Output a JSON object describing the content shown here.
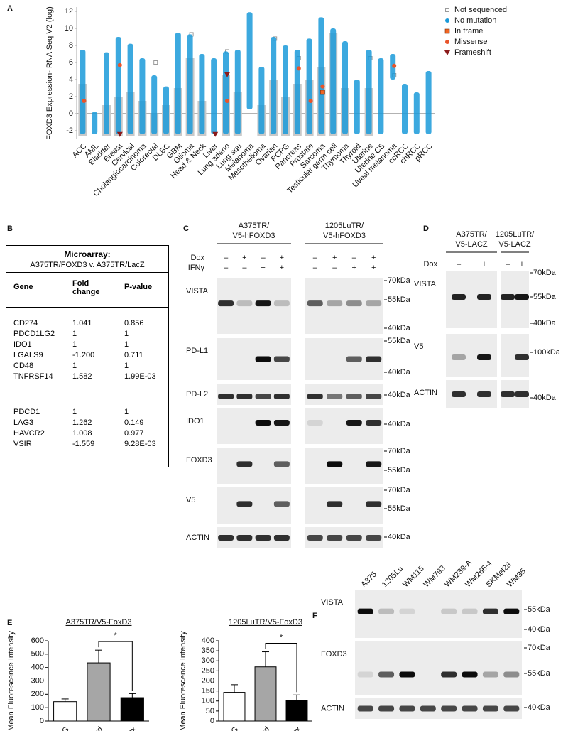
{
  "panel_labels": [
    "A",
    "B",
    "C",
    "D",
    "E",
    "F"
  ],
  "chart_data": [
    {
      "type": "strip",
      "y_label": "FOXD3 Expression- RNA Seq V2 (log)",
      "categories": [
        "ACC",
        "AML",
        "Bladder",
        "Breast",
        "Cervical",
        "Cholangiocarcinoma",
        "Colorectal",
        "DLBC",
        "GBM",
        "Glioma",
        "Head & Neck",
        "Liver",
        "Lung adeno",
        "Lung squ",
        "Melanoma",
        "Mesothelioma",
        "Ovarian",
        "PCPG",
        "Pancreas",
        "Prostate",
        "Sarcoma",
        "Testicular germ cell",
        "Thymoma",
        "Thyroid",
        "Uterine",
        "Uterine CS",
        "Uveal melanoma",
        "ccRCC",
        "chRCC",
        "pRCC"
      ],
      "box_values": [
        3.5,
        null,
        1,
        2,
        2.5,
        1.5,
        0,
        1,
        3,
        6.5,
        1.5,
        null,
        4.5,
        2.5,
        null,
        1,
        4,
        2,
        3.5,
        4,
        5.5,
        9.5,
        3,
        null,
        3,
        null,
        null,
        null,
        null,
        null
      ],
      "box_color": "#c9c9c9",
      "series": [
        {
          "name": "Not sequenced",
          "marker": "square-open",
          "color": "#9a9a9a",
          "values": [
            null,
            null,
            null,
            null,
            null,
            null,
            6,
            null,
            null,
            9.3,
            null,
            null,
            7.3,
            null,
            null,
            null,
            8.8,
            null,
            6.5,
            null,
            null,
            null,
            null,
            null,
            6.5,
            null,
            4.5,
            null,
            null,
            null
          ]
        },
        {
          "name": "No mutation",
          "marker": "circle",
          "color": "#1a9ad9",
          "low": [
            -2.4,
            -2.4,
            -2.4,
            -2.4,
            -2.4,
            -2.4,
            -2.4,
            -2.4,
            -2.4,
            -2.4,
            -2.4,
            -2.4,
            -2.4,
            -2.4,
            0.5,
            -2.4,
            -2.4,
            -2.4,
            -2.4,
            -2.4,
            -2.4,
            -2.4,
            -2.4,
            -2.4,
            -2.4,
            -2.4,
            4,
            -2.4,
            -2.4,
            -2.4
          ],
          "high": [
            7.5,
            0.2,
            7.2,
            9,
            8.2,
            6.5,
            4.5,
            3.2,
            9.5,
            9.3,
            7,
            6.5,
            7.3,
            7.5,
            11.9,
            5.5,
            9,
            8,
            7.5,
            8.8,
            11.3,
            10,
            8.5,
            4,
            7.5,
            6.5,
            7,
            3.5,
            2.5,
            5
          ]
        },
        {
          "name": "In frame",
          "marker": "square",
          "color": "#f26522",
          "values": [
            null,
            null,
            null,
            null,
            null,
            null,
            null,
            null,
            null,
            null,
            null,
            null,
            null,
            null,
            null,
            null,
            null,
            null,
            null,
            null,
            2.5,
            null,
            null,
            null,
            null,
            null,
            null,
            null,
            null,
            null
          ]
        },
        {
          "name": "Missense",
          "marker": "circle",
          "color": "#e8542a",
          "values": [
            1.5,
            null,
            null,
            5.7,
            null,
            null,
            null,
            null,
            null,
            null,
            null,
            null,
            1.5,
            null,
            null,
            null,
            null,
            null,
            5.3,
            1.5,
            3.2,
            null,
            null,
            null,
            null,
            null,
            5.6,
            null,
            null,
            null
          ]
        },
        {
          "name": "Frameshift",
          "marker": "triangle",
          "color": "#8b1a1a",
          "values": [
            null,
            null,
            null,
            -2.4,
            null,
            null,
            null,
            null,
            null,
            null,
            null,
            -2.4,
            4.6,
            null,
            null,
            null,
            null,
            null,
            null,
            null,
            null,
            null,
            null,
            null,
            null,
            null,
            null,
            null,
            null,
            null
          ]
        }
      ],
      "ylim": [
        -3,
        12.5
      ],
      "yticks": [
        -2,
        0,
        2,
        4,
        6,
        8,
        10,
        12
      ],
      "zero_line": true
    },
    {
      "type": "bar",
      "title": "A375TR/V5-FoxD3",
      "y_label": "Mean Fluorescence Intensity",
      "categories": [
        "IgG",
        "Untreated",
        "+Dox"
      ],
      "values": [
        145,
        435,
        175
      ],
      "errors": [
        20,
        95,
        30
      ],
      "colors": [
        "#ffffff",
        "#a6a6a6",
        "#000000"
      ],
      "ylim": [
        0,
        600
      ],
      "yticks": [
        0,
        100,
        200,
        300,
        400,
        500,
        600
      ],
      "annotation": "*"
    },
    {
      "type": "bar",
      "title": "1205LuTR/V5-FoxD3",
      "y_label": "Mean Fluorescence Intensity",
      "categories": [
        "IgG",
        "Untreated",
        "+Dox"
      ],
      "values": [
        143,
        270,
        102
      ],
      "errors": [
        38,
        75,
        28
      ],
      "colors": [
        "#ffffff",
        "#a6a6a6",
        "#000000"
      ],
      "ylim": [
        0,
        400
      ],
      "yticks": [
        0,
        50,
        100,
        150,
        200,
        250,
        300,
        350,
        400
      ],
      "annotation": "*"
    }
  ],
  "table_b": {
    "title": "Microarray:",
    "subtitle": "A375TR/FOXD3 v. A375TR/LacZ",
    "header": [
      "Gene",
      "Fold change",
      "P-value"
    ],
    "groups": [
      [
        [
          "CD274",
          "1.041",
          "0.856"
        ],
        [
          "PDCD1LG2",
          "1",
          "1"
        ],
        [
          "IDO1",
          "1",
          "1"
        ],
        [
          "LGALS9",
          "-1.200",
          "0.711"
        ],
        [
          "CD48",
          "1",
          "1"
        ],
        [
          "TNFRSF14",
          "1.582",
          "1.99E-03"
        ]
      ],
      [
        [
          "PDCD1",
          "1",
          "1"
        ],
        [
          "LAG3",
          "1.262",
          "0.149"
        ],
        [
          "HAVCR2",
          "1.008",
          "0.977"
        ],
        [
          "VSIR",
          "-1.559",
          "9.28E-03"
        ]
      ]
    ]
  },
  "blot_c": {
    "groups": [
      [
        "A375TR/",
        "V5-hFOXD3"
      ],
      [
        "1205LuTR/",
        "V5-hFOXD3"
      ]
    ],
    "conditions": [
      {
        "name": "Dox",
        "signs": [
          "–",
          "+",
          "–",
          "+",
          "–",
          "+",
          "–",
          "+"
        ]
      },
      {
        "name": "IFNγ",
        "signs": [
          "–",
          "–",
          "+",
          "+",
          "–",
          "–",
          "+",
          "+"
        ]
      }
    ],
    "rows": [
      {
        "label": "VISTA",
        "markers": [
          "70kDa",
          "55kDa",
          "40kDa"
        ]
      },
      {
        "label": "PD-L1",
        "markers": [
          "55kDa",
          "40kDa"
        ]
      },
      {
        "label": "PD-L2",
        "markers": [
          "40kDa"
        ]
      },
      {
        "label": "IDO1",
        "markers": [
          "40kDa"
        ]
      },
      {
        "label": "FOXD3",
        "markers": [
          "70kDa",
          "55kDa"
        ]
      },
      {
        "label": "V5",
        "markers": [
          "70kDa",
          "55kDa"
        ]
      },
      {
        "label": "ACTIN",
        "markers": [
          "40kDa"
        ]
      }
    ]
  },
  "blot_d": {
    "groups": [
      [
        "A375TR/",
        "V5-LACZ"
      ],
      [
        "1205LuTR/",
        "V5-LACZ"
      ]
    ],
    "conditions": [
      {
        "name": "Dox",
        "signs": [
          "–",
          "+",
          "–",
          "+"
        ]
      }
    ],
    "rows": [
      {
        "label": "VISTA",
        "markers": [
          "70kDa",
          "55kDa",
          "40kDa"
        ]
      },
      {
        "label": "V5",
        "markers": [
          "100kDa"
        ]
      },
      {
        "label": "ACTIN",
        "markers": [
          "40kDa"
        ]
      }
    ]
  },
  "blot_f": {
    "lanes": [
      "A375",
      "1205Lu",
      "WM115",
      "WM793",
      "WM239-A",
      "WM266-4",
      "SKMel28",
      "WM35"
    ],
    "rows": [
      {
        "label": "VISTA",
        "markers": [
          "55kDa",
          "40kDa"
        ]
      },
      {
        "label": "FOXD3",
        "markers": [
          "70kDa",
          "55kDa"
        ]
      },
      {
        "label": "ACTIN",
        "markers": [
          "40kDa"
        ]
      }
    ]
  }
}
